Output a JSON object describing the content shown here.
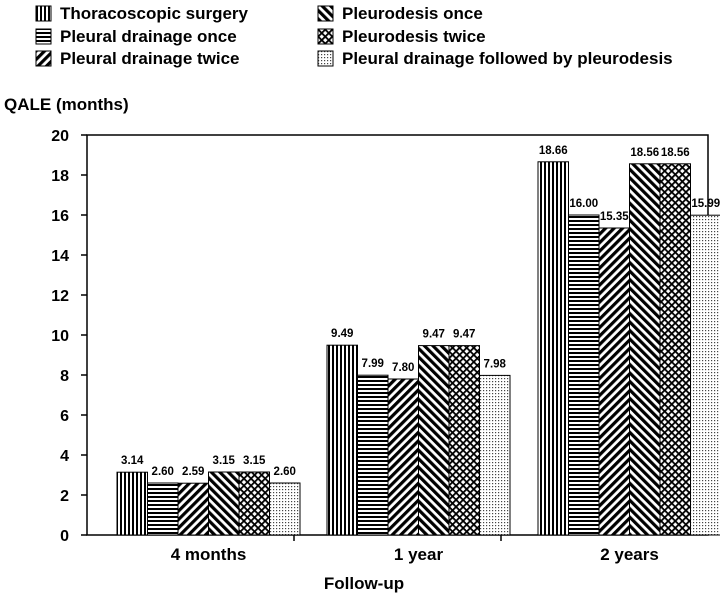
{
  "chart_data": {
    "type": "bar",
    "ylabel": "QALE (months)",
    "xlabel": "Follow-up",
    "ylim": [
      0,
      20
    ],
    "yticks": [
      0,
      2,
      4,
      6,
      8,
      10,
      12,
      14,
      16,
      18,
      20
    ],
    "categories": [
      "4 months",
      "1 year",
      "2 years"
    ],
    "legend_position": "top",
    "grid": false,
    "series": [
      {
        "name": "Thoracoscopic surgery",
        "values": [
          3.14,
          9.49,
          18.66
        ],
        "labels": [
          "3.14",
          "9.49",
          "18.66"
        ],
        "pattern": "vertical-lines"
      },
      {
        "name": "Pleural drainage once",
        "values": [
          2.6,
          7.99,
          16.0
        ],
        "labels": [
          "2.60",
          "7.99",
          "16.00"
        ],
        "pattern": "horizontal-lines"
      },
      {
        "name": "Pleural drainage twice",
        "values": [
          2.59,
          7.8,
          15.35
        ],
        "labels": [
          "2.59",
          "7.80",
          "15.35"
        ],
        "pattern": "diagonal-up"
      },
      {
        "name": "Pleurodesis once",
        "values": [
          3.15,
          9.47,
          18.56
        ],
        "labels": [
          "3.15",
          "9.47",
          "18.56"
        ],
        "pattern": "diagonal-down"
      },
      {
        "name": "Pleurodesis twice",
        "values": [
          3.15,
          9.47,
          18.56
        ],
        "labels": [
          "3.15",
          "9.47",
          "18.56"
        ],
        "pattern": "crosshatch"
      },
      {
        "name": "Pleural drainage followed by pleurodesis",
        "values": [
          2.6,
          7.98,
          15.99
        ],
        "labels": [
          "2.60",
          "7.98",
          "15.99"
        ],
        "pattern": "dots"
      }
    ]
  }
}
